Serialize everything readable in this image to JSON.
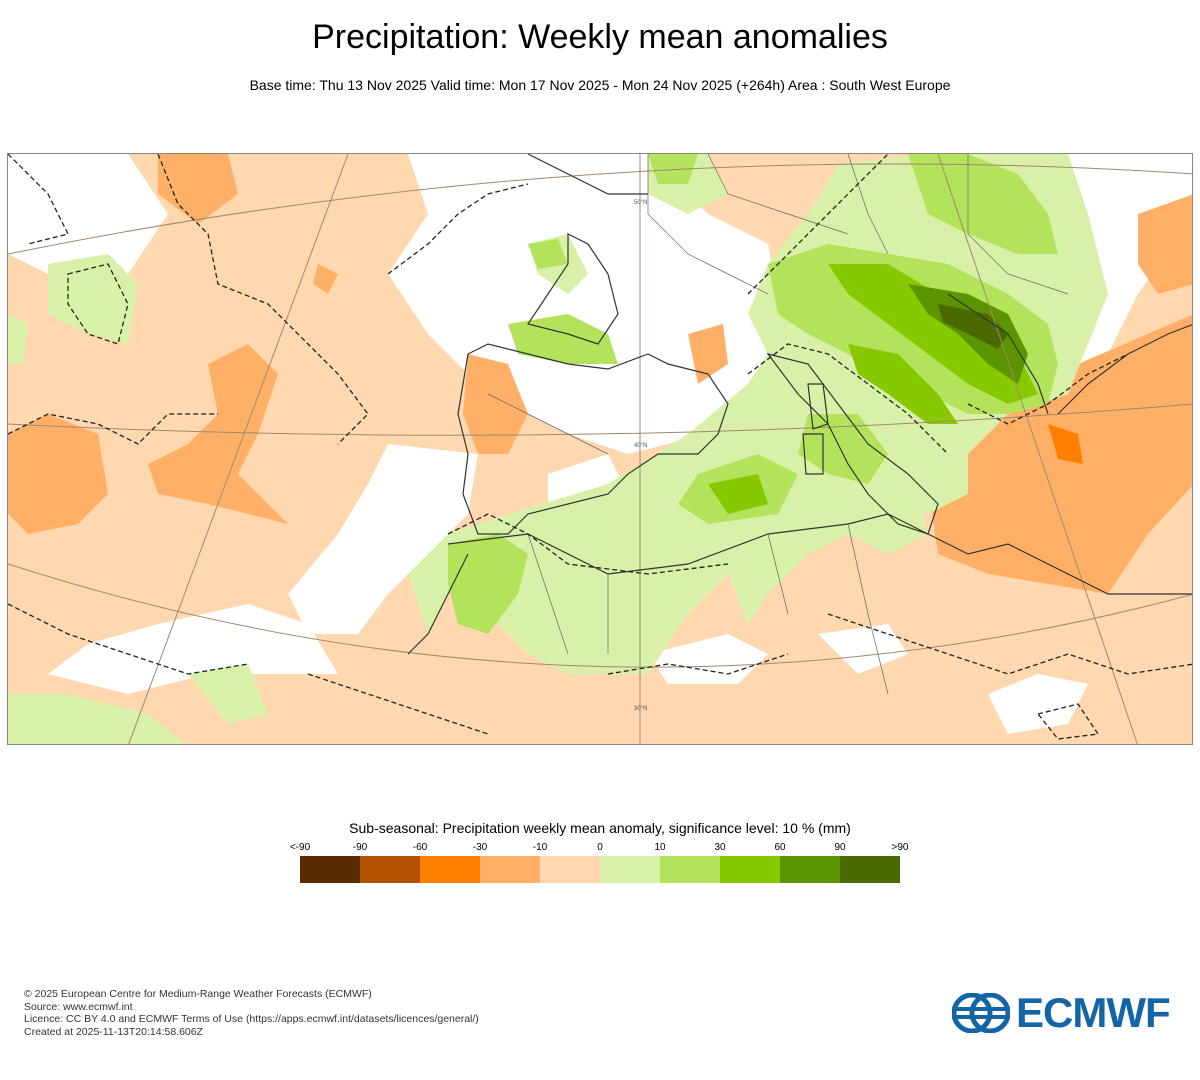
{
  "title": "Precipitation: Weekly mean anomalies",
  "subtitle": "Base time: Thu 13 Nov 2025 Valid time: Mon 17 Nov 2025 - Mon 24 Nov 2025 (+264h) Area : South West Europe",
  "map": {
    "area": "South West Europe",
    "grid_labels": [
      "50°N",
      "40°N",
      "30°N"
    ]
  },
  "legend": {
    "title": "Sub-seasonal: Precipitation weekly mean anomaly, significance level: 10 % (mm)",
    "ticks": [
      "<-90",
      "-90",
      "-60",
      "-30",
      "-10",
      "0",
      "10",
      "30",
      "60",
      "90",
      ">90"
    ],
    "colors": [
      "#5a2a00",
      "#b05000",
      "#ff8000",
      "#ffb066",
      "#ffd8b0",
      "#d9f0a8",
      "#b2e35a",
      "#88c800",
      "#5c9400",
      "#4a6a00"
    ]
  },
  "footer": {
    "line1": "© 2025 European Centre for Medium-Range Weather Forecasts (ECMWF)",
    "line2": "Source: www.ecmwf.int",
    "line3": "Licence: CC BY 4.0 and ECMWF Terms of Use (https://apps.ecmwf.int/datasets/licences/general/)",
    "line4": "Created at 2025-11-13T20:14:58.606Z"
  },
  "logo": {
    "text": "ECMWF",
    "color": "#1464a8"
  }
}
